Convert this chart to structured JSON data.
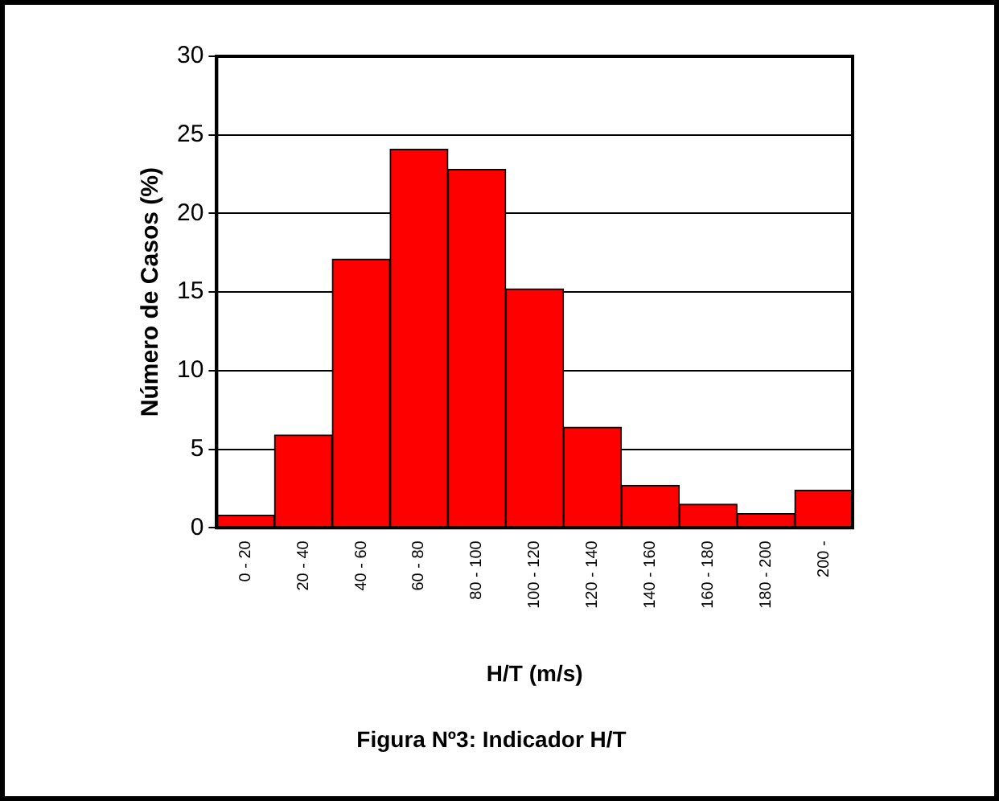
{
  "chart_data": {
    "type": "bar",
    "title": "Figura Nº3: Indicador H/T",
    "xlabel": "H/T (m/s)",
    "ylabel": "Número de Casos (%)",
    "categories": [
      "0 - 20",
      "20 - 40",
      "40 - 60",
      "60 - 80",
      "80 - 100",
      "100 - 120",
      "120 - 140",
      "140 - 160",
      "160 - 180",
      "180 - 200",
      "200 -"
    ],
    "values": [
      0.8,
      5.9,
      17.1,
      24.1,
      22.8,
      15.2,
      6.4,
      2.7,
      1.5,
      0.9,
      2.4
    ],
    "color": "#ff0000",
    "ylim": [
      0,
      30
    ],
    "yticks": [
      0,
      5,
      10,
      15,
      20,
      25,
      30
    ],
    "grid": "y"
  }
}
